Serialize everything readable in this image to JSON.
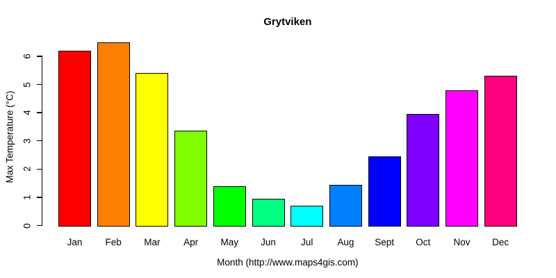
{
  "chart_data": {
    "type": "bar",
    "title": "Grytviken",
    "xlabel": "Month (http://www.maps4gis.com)",
    "ylabel": "Max Temperature (°C)",
    "categories": [
      "Jan",
      "Feb",
      "Mar",
      "Apr",
      "May",
      "Jun",
      "Jul",
      "Aug",
      "Sept",
      "Oct",
      "Nov",
      "Dec"
    ],
    "values": [
      6.2,
      6.5,
      5.4,
      3.35,
      1.4,
      0.95,
      0.7,
      1.45,
      2.45,
      3.95,
      4.8,
      5.3
    ],
    "bar_colors": [
      "#FF0000",
      "#FF8000",
      "#FFFF00",
      "#80FF00",
      "#00FF00",
      "#00FF80",
      "#00FFFF",
      "#0080FF",
      "#0000FF",
      "#8000FF",
      "#FF00FF",
      "#FF0080"
    ],
    "yticks": [
      0,
      1,
      2,
      3,
      4,
      5,
      6
    ],
    "ylim": [
      0,
      6.6
    ],
    "grid": false,
    "legend": null,
    "bar_border_color": "#000000",
    "axis_color": "#000000",
    "text_color": "#000000",
    "background_color": "#FFFFFF"
  }
}
